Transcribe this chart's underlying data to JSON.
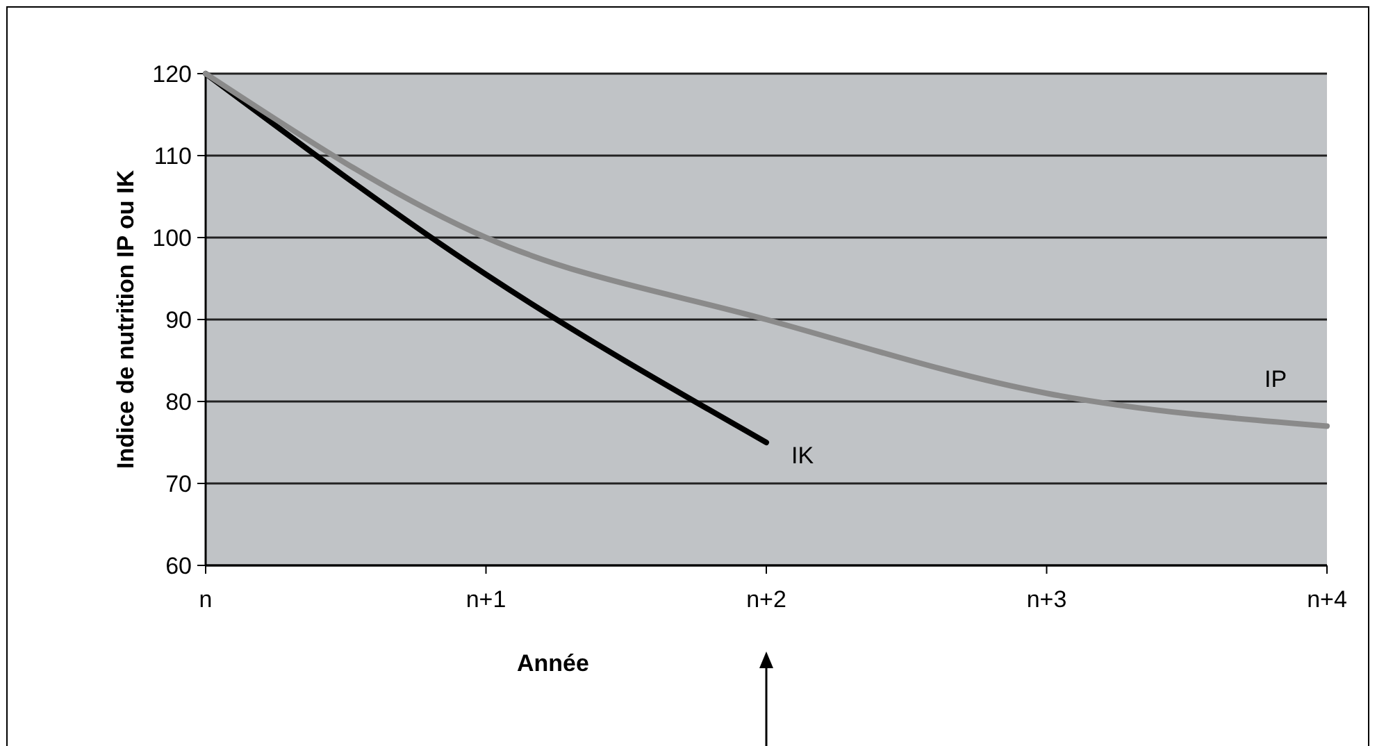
{
  "chart_data": {
    "type": "line",
    "xlabel": "Année",
    "ylabel": "Indice de nutrition IP ou IK",
    "categories": [
      "n",
      "n+1",
      "n+2",
      "n+3",
      "n+4"
    ],
    "ylim": [
      60,
      120
    ],
    "yticks": [
      60,
      70,
      80,
      90,
      100,
      110,
      120
    ],
    "grid": "y",
    "marker": "none",
    "line_style": "solid",
    "series": [
      {
        "name": "IK",
        "color": "#000000",
        "values": [
          120,
          95.5,
          75,
          null,
          null
        ]
      },
      {
        "name": "IP",
        "color": "#8a8a8a",
        "values": [
          120,
          100,
          90,
          81,
          77
        ]
      }
    ]
  }
}
